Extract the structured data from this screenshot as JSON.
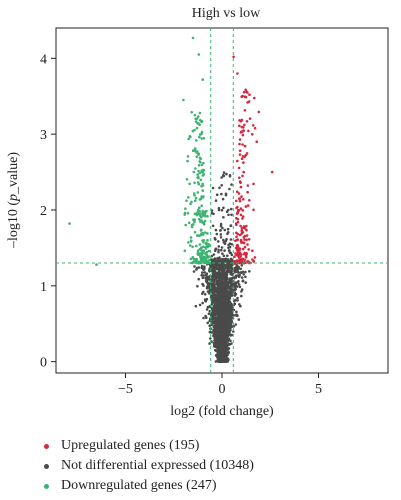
{
  "chart_data": {
    "type": "scatter",
    "title": "High vs low",
    "xlabel": "log2 (fold change)",
    "ylabel_prefix": "–log10 (",
    "ylabel_italic": "p",
    "ylabel_suffix": "_value)",
    "xlim": [
      -8.6,
      8.6
    ],
    "ylim": [
      -0.15,
      4.4
    ],
    "xticks": [
      -5,
      0,
      5
    ],
    "yticks": [
      0,
      1,
      2,
      3,
      4
    ],
    "fold_change_threshold": 0.585,
    "pvalue_threshold_log10": 1.301,
    "grid": false,
    "legend_position": "bottom-left",
    "colors": {
      "up": "#d7263d",
      "not": "#4a4a4a",
      "down": "#3cb371",
      "threshold": "#3cb371"
    },
    "series": [
      {
        "key": "up",
        "name": "Upregulated genes (195)",
        "count": 195
      },
      {
        "key": "not",
        "name": "Not differential expressed (10348)",
        "count": 10348
      },
      {
        "key": "down",
        "name": "Downregulated genes (247)",
        "count": 247
      }
    ],
    "outliers": {
      "down": [
        [
          -7.9,
          1.82
        ],
        [
          -6.5,
          1.28
        ],
        [
          -1.5,
          4.27
        ],
        [
          -1.2,
          4.05
        ],
        [
          -2.0,
          3.45
        ],
        [
          -1.0,
          3.72
        ]
      ],
      "up": [
        [
          0.6,
          4.02
        ],
        [
          0.8,
          3.8
        ],
        [
          2.6,
          2.5
        ],
        [
          1.8,
          2.9
        ]
      ]
    }
  }
}
